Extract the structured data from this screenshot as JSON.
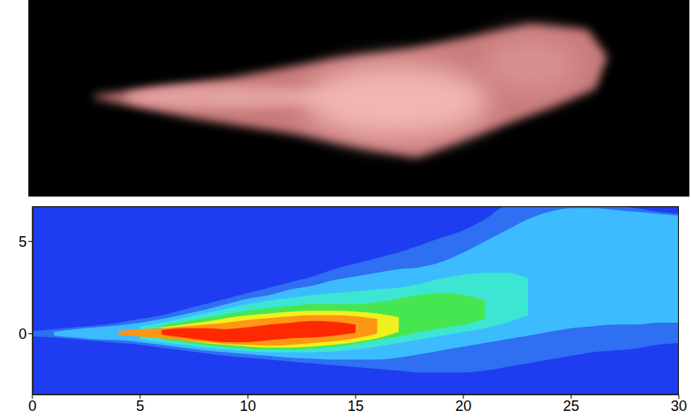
{
  "chart_data": {
    "type": "contour",
    "color": "#1e3cf0",
    "x": [
      0,
      1,
      2,
      3,
      4,
      5,
      6,
      7,
      8,
      9,
      10,
      11,
      12,
      13,
      14,
      15,
      16,
      17,
      18,
      19,
      20,
      21,
      22,
      23,
      24,
      25,
      26,
      27,
      28,
      29,
      30
    ],
    "xlim": [
      0,
      30
    ],
    "xticks": [
      0,
      5,
      10,
      15,
      20,
      25,
      30
    ],
    "ylim": [
      -3.3,
      6.9
    ],
    "yticks": [
      0,
      5
    ],
    "contours": [
      {
        "color": "#2f6ff2",
        "lower": [
          -0.15,
          -0.2,
          -0.3,
          -0.4,
          -0.5,
          -0.6,
          -0.75,
          -0.9,
          -1.05,
          -1.2,
          -1.3,
          -1.4,
          -1.5,
          -1.6,
          -1.7,
          -1.8,
          -1.9,
          -2.0,
          -2.1,
          -2.1,
          -2.1,
          -2.0,
          -1.8,
          -1.6,
          -1.4,
          -1.2,
          -1.0,
          -0.9,
          -0.8,
          -0.6,
          -0.5
        ],
        "upper": [
          0.15,
          0.25,
          0.35,
          0.45,
          0.6,
          0.8,
          1.0,
          1.3,
          1.6,
          1.9,
          2.2,
          2.5,
          2.8,
          3.1,
          3.5,
          3.8,
          4.1,
          4.4,
          4.8,
          5.2,
          5.6,
          6.2,
          6.9,
          6.9,
          6.9,
          6.9,
          6.9,
          6.9,
          6.8,
          6.6,
          6.5
        ]
      },
      {
        "color": "#3cbcff",
        "lower": [
          null,
          -0.1,
          -0.2,
          -0.3,
          -0.35,
          -0.45,
          -0.6,
          -0.75,
          -0.9,
          -1.0,
          -1.1,
          -1.2,
          -1.3,
          -1.35,
          -1.4,
          -1.4,
          -1.4,
          -1.3,
          -1.1,
          -0.9,
          -0.7,
          -0.5,
          -0.3,
          -0.1,
          0.1,
          0.3,
          0.4,
          0.5,
          0.5,
          0.6,
          0.6
        ],
        "upper": [
          null,
          0.1,
          0.25,
          0.35,
          0.45,
          0.6,
          0.8,
          1.05,
          1.3,
          1.6,
          1.9,
          2.1,
          2.4,
          2.6,
          2.9,
          3.1,
          3.3,
          3.5,
          3.6,
          3.9,
          4.4,
          5.0,
          5.6,
          6.2,
          6.6,
          6.8,
          6.8,
          6.7,
          6.6,
          6.5,
          6.4
        ]
      },
      {
        "color": "#3ce6d2",
        "lower": [
          null,
          null,
          null,
          null,
          null,
          -0.3,
          -0.45,
          -0.6,
          -0.75,
          -0.85,
          -0.95,
          -1.0,
          -1.0,
          -1.0,
          -0.95,
          -0.85,
          -0.7,
          -0.5,
          -0.3,
          -0.1,
          0.1,
          0.3,
          0.6,
          1.0,
          null,
          null,
          null,
          null,
          null,
          null,
          null
        ],
        "upper": [
          null,
          null,
          null,
          null,
          null,
          0.4,
          0.6,
          0.85,
          1.1,
          1.35,
          1.6,
          1.8,
          1.95,
          2.1,
          2.2,
          2.3,
          2.4,
          2.5,
          2.7,
          3.0,
          3.2,
          3.3,
          3.3,
          3.0,
          null,
          null,
          null,
          null,
          null,
          null,
          null
        ]
      },
      {
        "color": "#46e650",
        "lower": [
          null,
          null,
          null,
          null,
          null,
          null,
          -0.3,
          -0.45,
          -0.6,
          -0.7,
          -0.8,
          -0.85,
          -0.85,
          -0.8,
          -0.7,
          -0.55,
          -0.35,
          -0.15,
          0.1,
          0.3,
          0.5,
          0.8,
          null,
          null,
          null,
          null,
          null,
          null,
          null,
          null,
          null
        ],
        "upper": [
          null,
          null,
          null,
          null,
          null,
          null,
          0.45,
          0.65,
          0.85,
          1.05,
          1.25,
          1.4,
          1.5,
          1.6,
          1.6,
          1.6,
          1.7,
          1.9,
          2.1,
          2.2,
          2.1,
          1.8,
          null,
          null,
          null,
          null,
          null,
          null,
          null,
          null,
          null
        ]
      },
      {
        "color": "#f0f01e",
        "lower": [
          null,
          null,
          null,
          null,
          null,
          null,
          -0.2,
          -0.35,
          -0.5,
          -0.6,
          -0.7,
          -0.75,
          -0.75,
          -0.7,
          -0.6,
          -0.45,
          -0.25,
          0.1,
          null,
          null,
          null,
          null,
          null,
          null,
          null,
          null,
          null,
          null,
          null,
          null,
          null
        ],
        "upper": [
          null,
          null,
          null,
          null,
          null,
          null,
          0.35,
          0.5,
          0.65,
          0.85,
          1.0,
          1.1,
          1.2,
          1.25,
          1.25,
          1.2,
          1.1,
          0.9,
          null,
          null,
          null,
          null,
          null,
          null,
          null,
          null,
          null,
          null,
          null,
          null,
          null
        ]
      },
      {
        "color": "#ff9614",
        "lower": [
          null,
          null,
          null,
          null,
          -0.05,
          -0.15,
          -0.25,
          -0.35,
          -0.45,
          -0.55,
          -0.6,
          -0.65,
          -0.6,
          -0.5,
          -0.4,
          -0.25,
          0.0,
          null,
          null,
          null,
          null,
          null,
          null,
          null,
          null,
          null,
          null,
          null,
          null,
          null,
          null
        ],
        "upper": [
          null,
          null,
          null,
          null,
          0.15,
          0.25,
          0.3,
          0.4,
          0.5,
          0.6,
          0.75,
          0.85,
          0.95,
          1.0,
          1.0,
          0.95,
          0.8,
          null,
          null,
          null,
          null,
          null,
          null,
          null,
          null,
          null,
          null,
          null,
          null,
          null,
          null
        ]
      },
      {
        "color": "#ff2800",
        "lower": [
          null,
          null,
          null,
          null,
          null,
          null,
          -0.05,
          -0.2,
          -0.35,
          -0.45,
          -0.45,
          -0.35,
          -0.25,
          -0.2,
          -0.1,
          0.05,
          null,
          null,
          null,
          null,
          null,
          null,
          null,
          null,
          null,
          null,
          null,
          null,
          null,
          null,
          null
        ],
        "upper": [
          null,
          null,
          null,
          null,
          null,
          null,
          0.2,
          0.3,
          0.3,
          0.25,
          0.35,
          0.5,
          0.6,
          0.7,
          0.65,
          0.5,
          null,
          null,
          null,
          null,
          null,
          null,
          null,
          null,
          null,
          null,
          null,
          null,
          null,
          null,
          null
        ]
      }
    ]
  }
}
